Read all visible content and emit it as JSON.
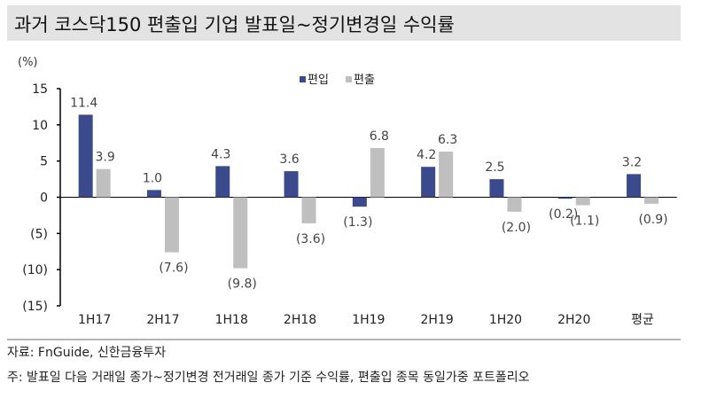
{
  "title": "과거 코스닥150 편출입 기업 발표일~정기변경일 수익률",
  "source": "자료: FnGuide, 신한금융투자",
  "note": "주: 발표일 다음 거래일 종가~정기변경 전거래일 종가 기준 수익률, 편출입 종목 동일가중 포트폴리오",
  "chart_data": {
    "type": "bar",
    "title": "과거 코스닥150 편출입 기업 발표일~정기변경일 수익률",
    "ylabel": "(%)",
    "ylim": [
      -15,
      15
    ],
    "yticks": [
      15,
      10,
      5,
      0,
      -5,
      -10,
      -15
    ],
    "ytick_labels": [
      "15",
      "10",
      "5",
      "0",
      "(5)",
      "(10)",
      "(15)"
    ],
    "grid": false,
    "legend_position": "top-center",
    "categories": [
      "1H17",
      "2H17",
      "1H18",
      "2H18",
      "1H19",
      "2H19",
      "1H20",
      "2H20",
      "평균"
    ],
    "series": [
      {
        "name": "편입",
        "color": "#3a4a8c",
        "values": [
          11.4,
          1.0,
          4.3,
          3.6,
          -1.3,
          4.2,
          2.5,
          -0.2,
          3.2
        ]
      },
      {
        "name": "편출",
        "color": "#bfbfbf",
        "values": [
          3.9,
          -7.6,
          -9.8,
          -3.6,
          6.8,
          6.3,
          -2.0,
          -1.1,
          -0.9
        ]
      }
    ]
  }
}
